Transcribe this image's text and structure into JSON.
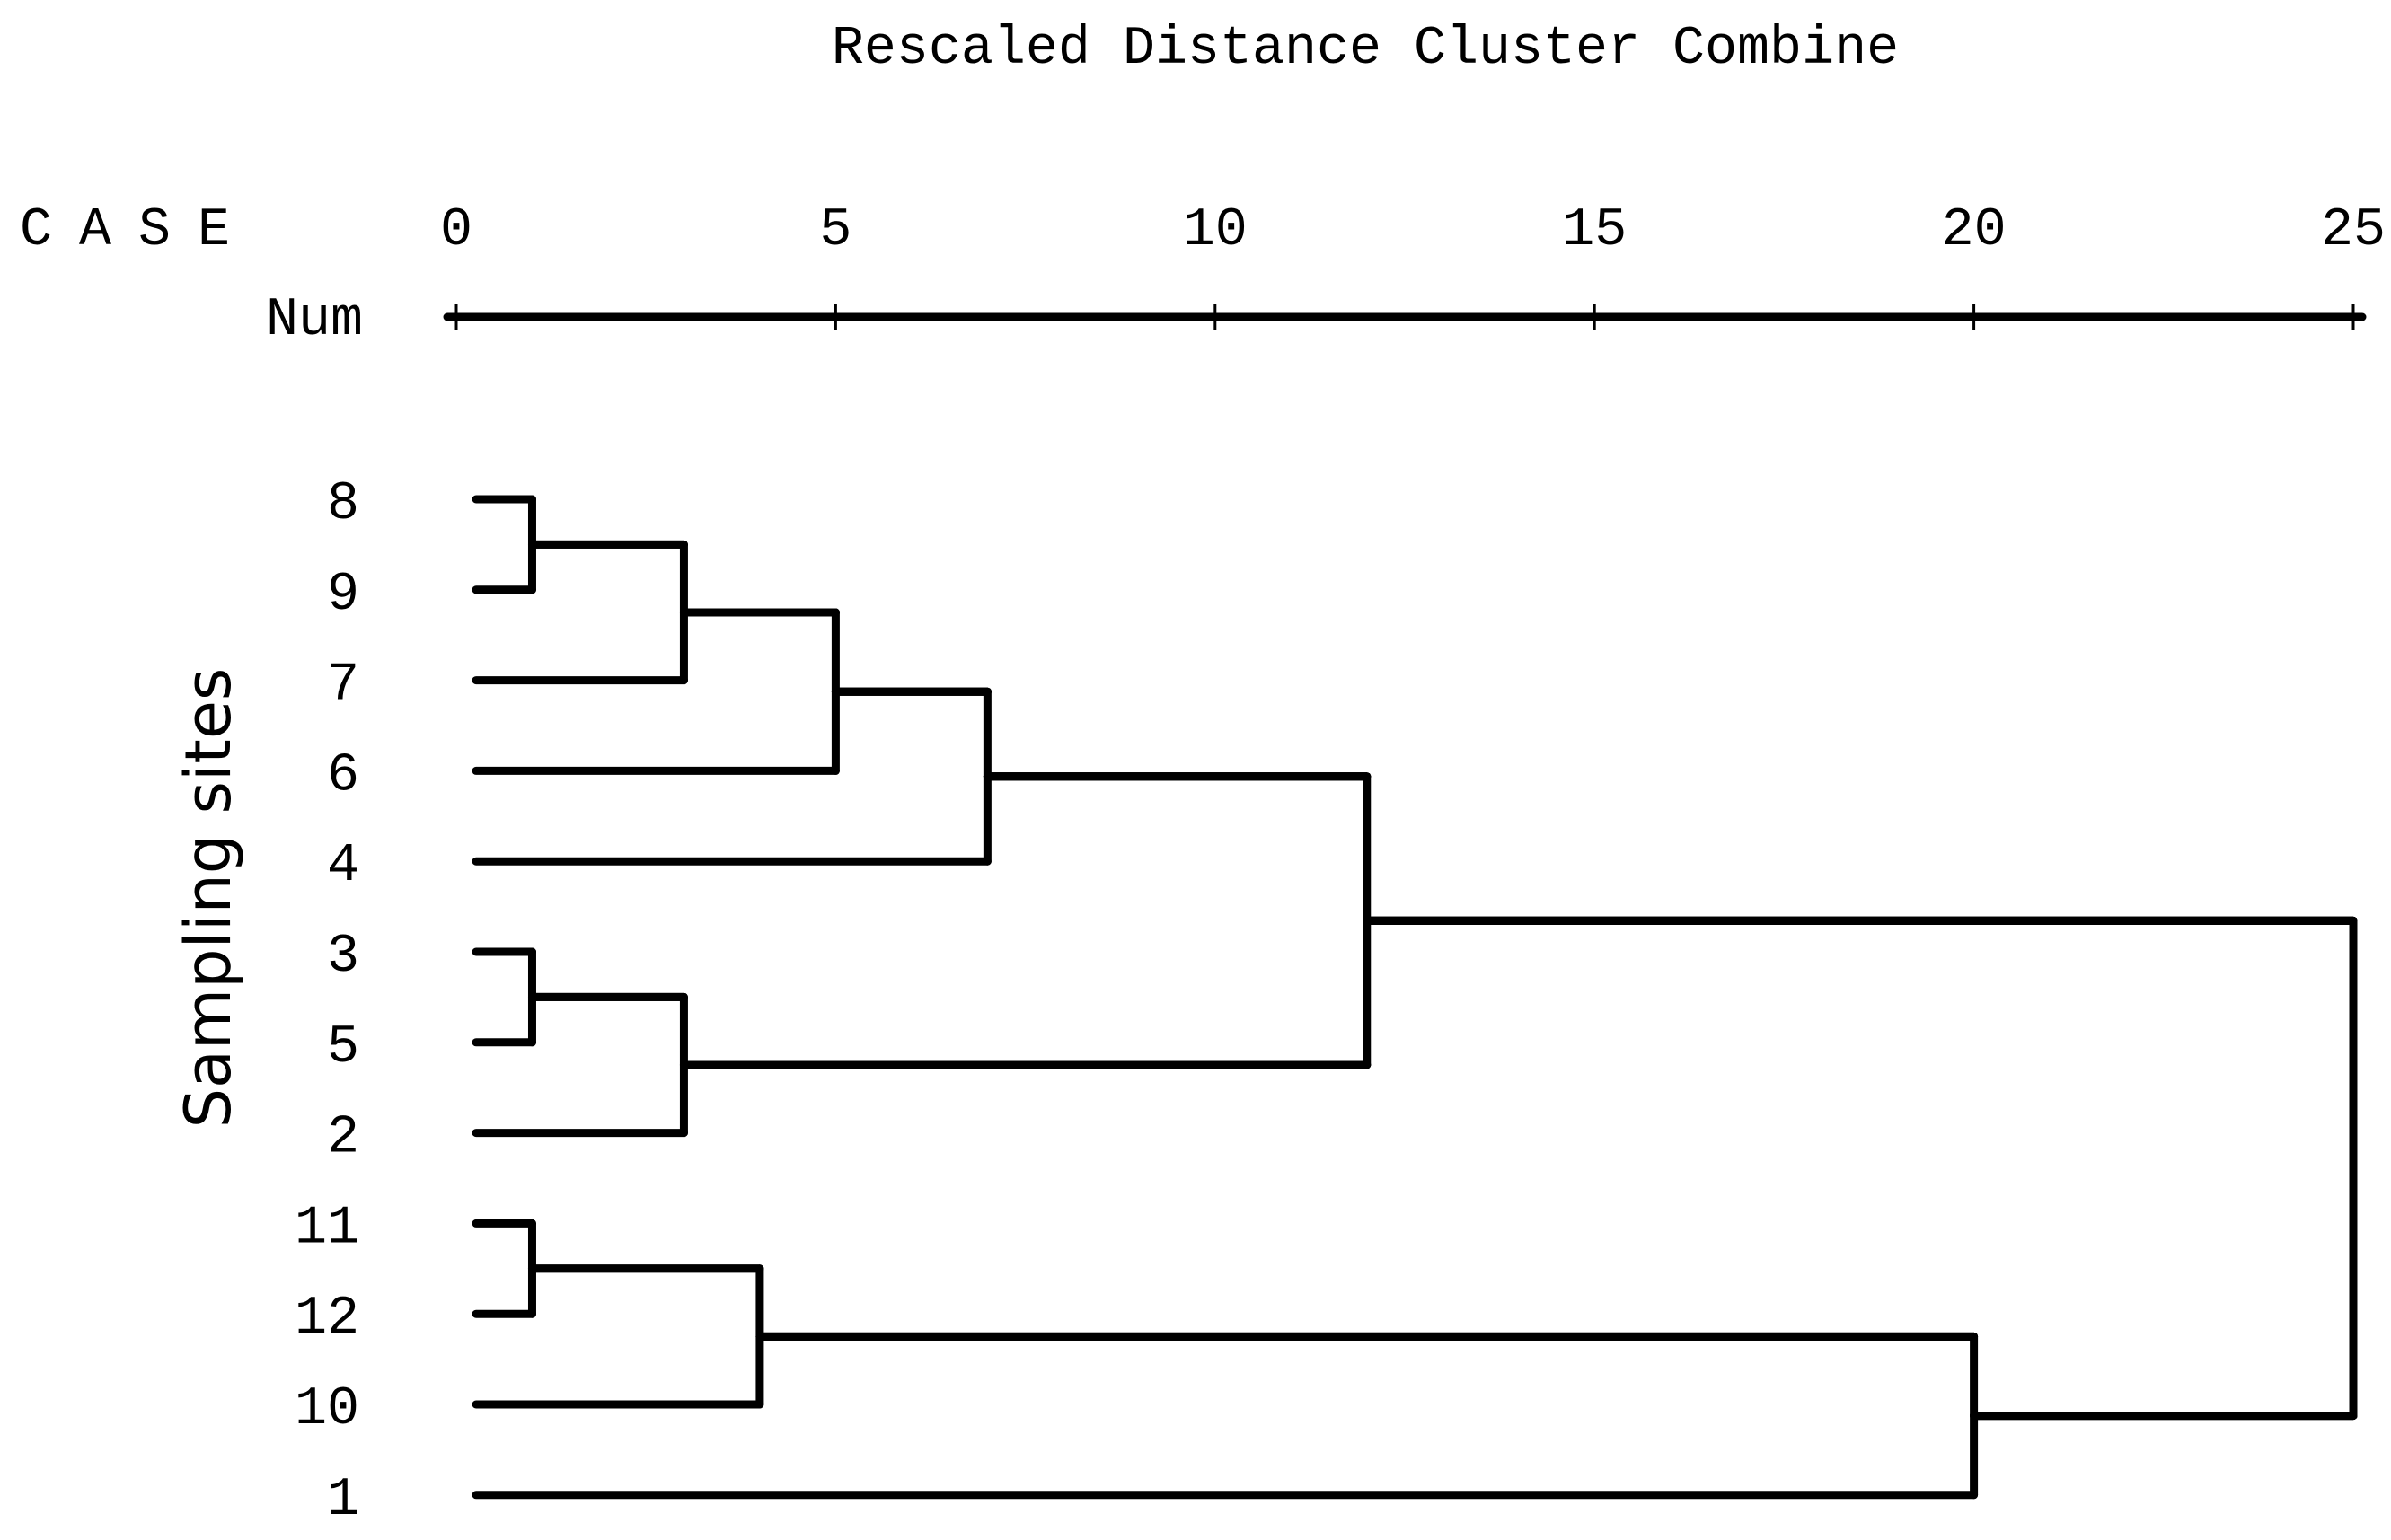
{
  "chart_data": {
    "type": "dendrogram",
    "title": "Rescaled Distance Cluster Combine",
    "header_case": "CASE",
    "header_num": "Num",
    "ylabel": "Sampling sites",
    "xlim": [
      0,
      25
    ],
    "xticks": [
      0,
      5,
      10,
      15,
      20,
      25
    ],
    "leaf_order": [
      "8",
      "9",
      "7",
      "6",
      "4",
      "3",
      "5",
      "2",
      "11",
      "12",
      "10",
      "1"
    ],
    "merges": [
      {
        "members": [
          "8",
          "9"
        ],
        "distance": 1
      },
      {
        "members": [
          "3",
          "5"
        ],
        "distance": 1
      },
      {
        "members": [
          "11",
          "12"
        ],
        "distance": 1
      },
      {
        "members": [
          "8",
          "9",
          "7"
        ],
        "distance": 3
      },
      {
        "members": [
          "3",
          "5",
          "2"
        ],
        "distance": 3
      },
      {
        "members": [
          "11",
          "12",
          "10"
        ],
        "distance": 4
      },
      {
        "members": [
          "8",
          "9",
          "7",
          "6"
        ],
        "distance": 5
      },
      {
        "members": [
          "8",
          "9",
          "7",
          "6",
          "4"
        ],
        "distance": 7
      },
      {
        "members": [
          "8",
          "9",
          "7",
          "6",
          "4",
          "3",
          "5",
          "2"
        ],
        "distance": 12
      },
      {
        "members": [
          "11",
          "12",
          "10",
          "1"
        ],
        "distance": 20
      },
      {
        "members": [
          "8",
          "9",
          "7",
          "6",
          "4",
          "3",
          "5",
          "2",
          "11",
          "12",
          "10",
          "1"
        ],
        "distance": 25
      }
    ]
  }
}
